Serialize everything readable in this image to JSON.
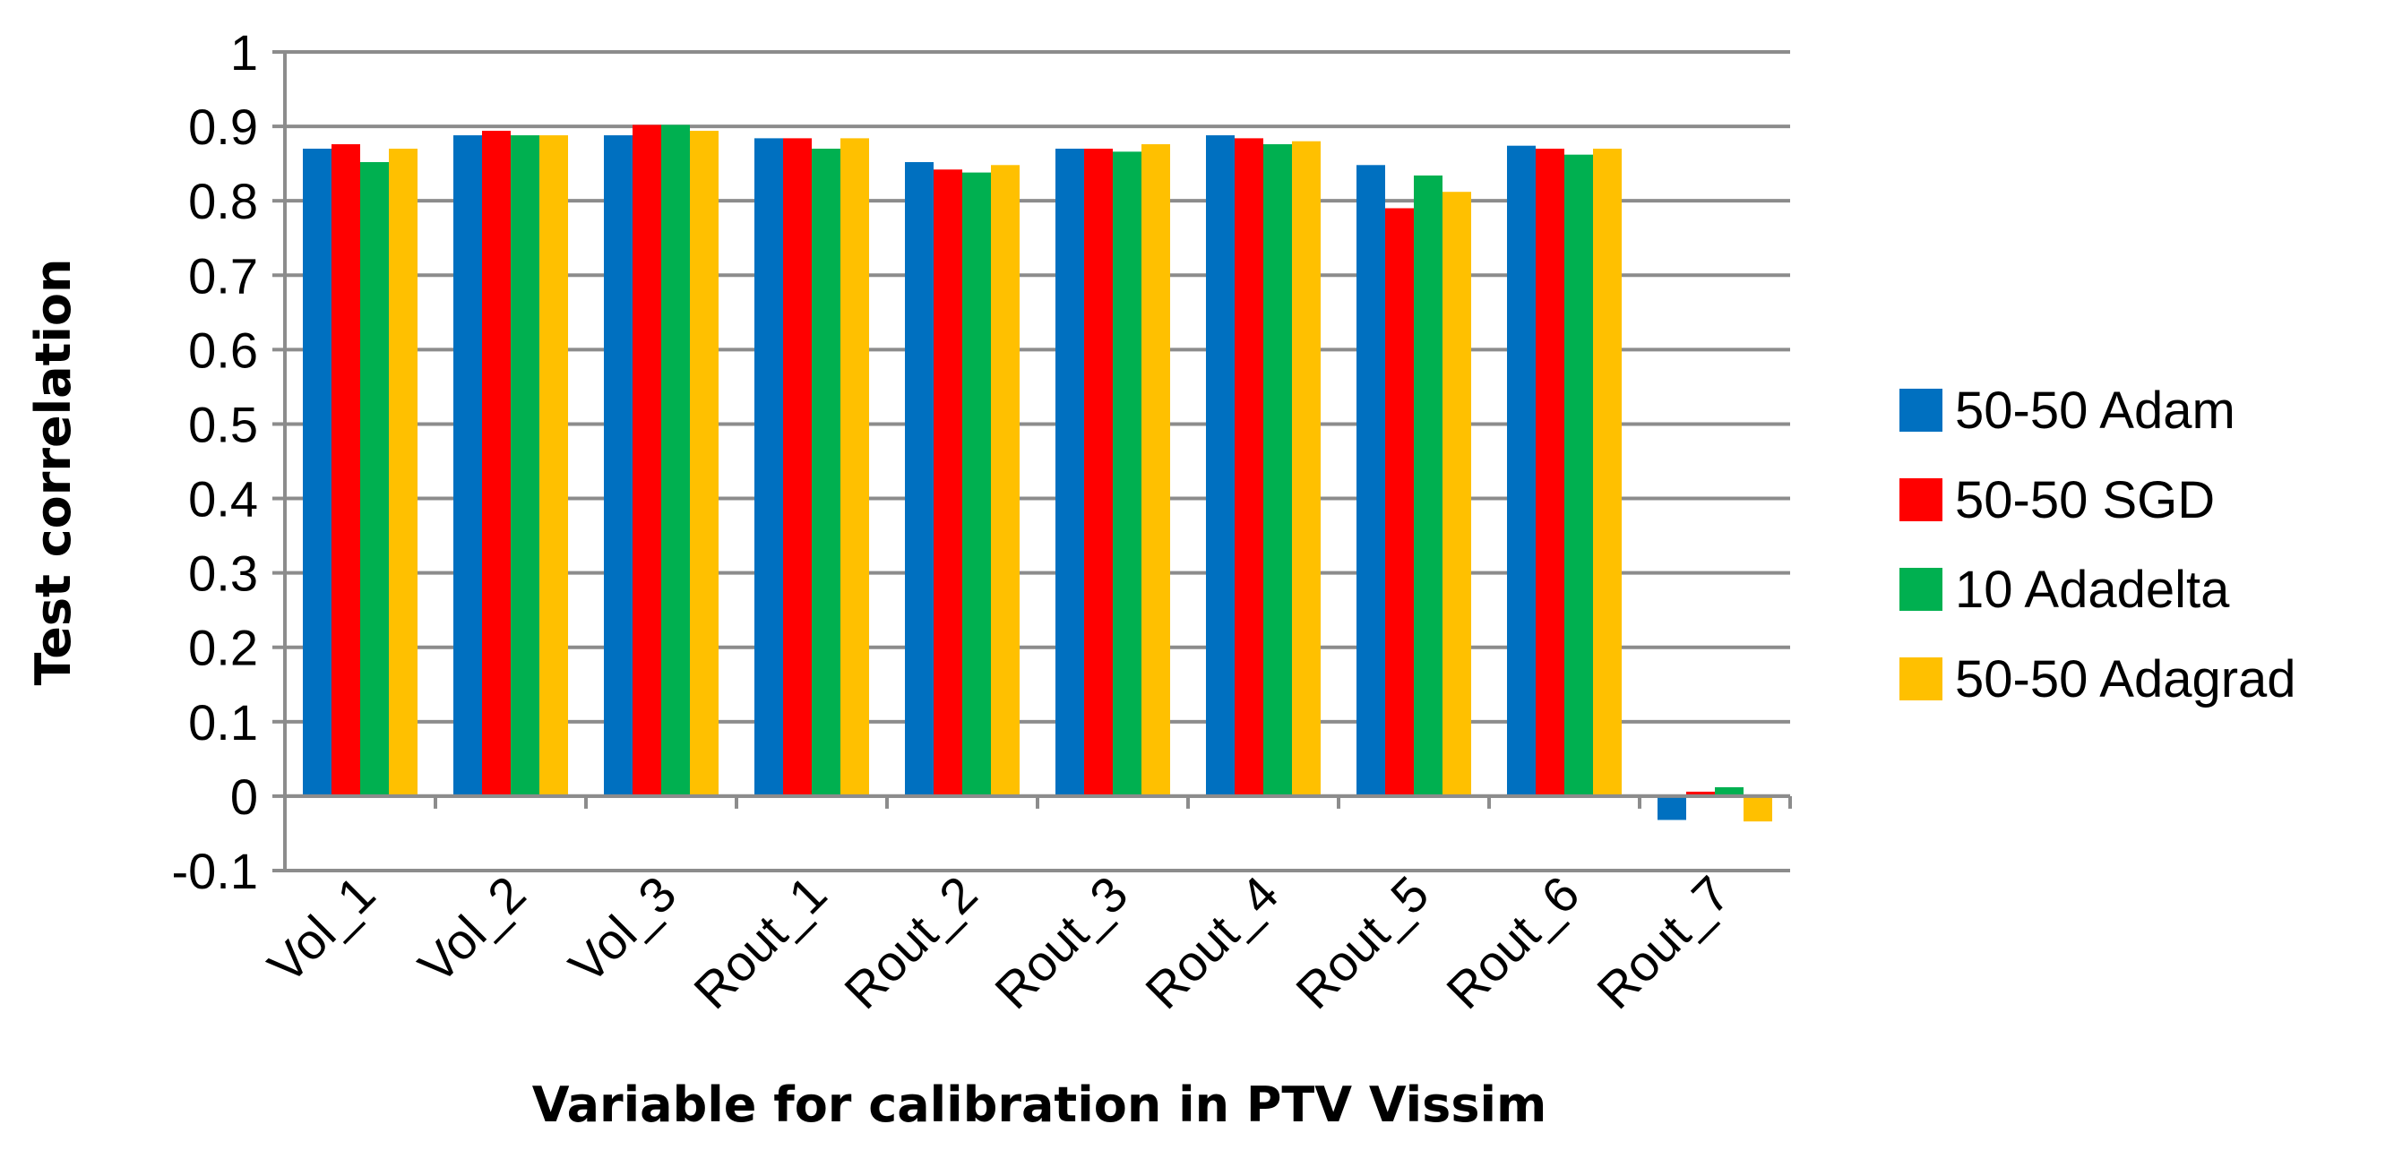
{
  "chart_data": {
    "type": "bar",
    "title": "",
    "xlabel": "Variable for calibration in PTV Vissim",
    "ylabel": "Test correlation",
    "ylim": [
      -0.1,
      1
    ],
    "yticks": [
      -0.1,
      0,
      0.1,
      0.2,
      0.3,
      0.4,
      0.5,
      0.6,
      0.7,
      0.8,
      0.9,
      1
    ],
    "ytick_labels": [
      "-0.1",
      "0",
      "0.1",
      "0.2",
      "0.3",
      "0.4",
      "0.5",
      "0.6",
      "0.7",
      "0.8",
      "0.9",
      "1"
    ],
    "grid": true,
    "legend_position": "right",
    "categories": [
      "Vol_1",
      "Vol_2",
      "Vol_3",
      "Rout_1",
      "Rout_2",
      "Rout_3",
      "Rout_4",
      "Rout_5",
      "Rout_6",
      "Rout_7"
    ],
    "series": [
      {
        "name": "50-50 Adam",
        "color": "#0070C0",
        "values": [
          0.87,
          0.888,
          0.888,
          0.884,
          0.852,
          0.87,
          0.888,
          0.848,
          0.874,
          -0.032
        ]
      },
      {
        "name": "50-50 SGD",
        "color": "#FF0000",
        "values": [
          0.876,
          0.894,
          0.902,
          0.884,
          0.842,
          0.87,
          0.884,
          0.79,
          0.87,
          0.006
        ]
      },
      {
        "name": "10 Adadelta",
        "color": "#00B050",
        "values": [
          0.852,
          0.888,
          0.902,
          0.87,
          0.838,
          0.866,
          0.876,
          0.834,
          0.862,
          0.012
        ]
      },
      {
        "name": "50-50 Adagrad",
        "color": "#FFC000",
        "values": [
          0.87,
          0.888,
          0.894,
          0.884,
          0.848,
          0.876,
          0.88,
          0.812,
          0.87,
          -0.034
        ]
      }
    ]
  }
}
